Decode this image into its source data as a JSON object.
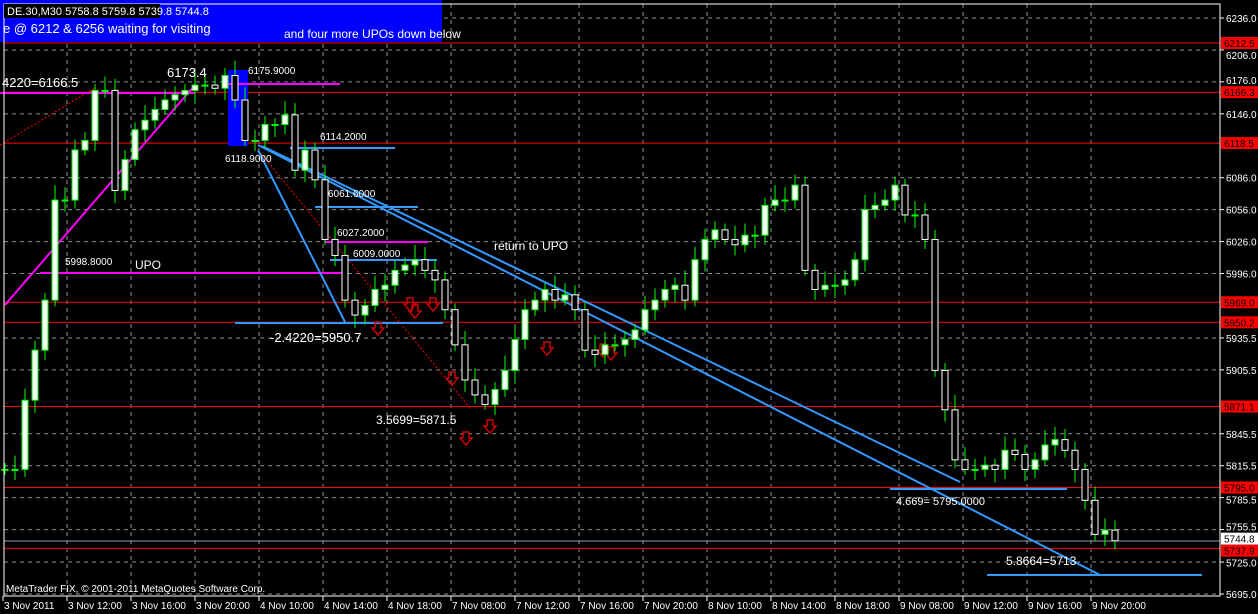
{
  "window": {
    "symbol_info": "DE.30,M30  5758.8 5759.8 5739.8 5744.8",
    "banner_text_1": "e @ 6212 & 6256 waiting for visiting",
    "banner_text_2": "and four more UPOs down below",
    "copyright": "MetaTrader FIX, © 2001-2011 MetaQuotes Software Corp."
  },
  "colors": {
    "background": "#000000",
    "bull_candle": "#ffffff",
    "wick": "#00ff00",
    "level_line": "#ff0000",
    "banner": "#0000ff",
    "trendline": "#3399ff",
    "fib_line": "#ff00ff",
    "bid_line": "#8899aa"
  },
  "chart_data": {
    "type": "candlestick",
    "title": "DE.30,M30",
    "ylim": [
      5695.0,
      6236.0
    ],
    "grid": true,
    "y_ticks": [
      "6236.0",
      "6206.0",
      "6176.0",
      "6146.0",
      "6086.0",
      "6056.0",
      "6026.0",
      "5996.0",
      "5935.5",
      "5905.5",
      "5845.5",
      "5815.5",
      "5785.5",
      "5755.5",
      "5725.0",
      "5695.0"
    ],
    "x_ticks": [
      "3 Nov 2011",
      "3 Nov 12:00",
      "3 Nov 16:00",
      "3 Nov 20:00",
      "4 Nov 10:00",
      "4 Nov 14:00",
      "4 Nov 18:00",
      "7 Nov 08:00",
      "7 Nov 12:00",
      "7 Nov 16:00",
      "7 Nov 20:00",
      "8 Nov 10:00",
      "8 Nov 14:00",
      "8 Nov 18:00",
      "9 Nov 08:00",
      "9 Nov 12:00",
      "9 Nov 16:00",
      "9 Nov 20:00"
    ],
    "closes": [
      5812,
      5812,
      5877,
      5924,
      5971,
      6065,
      6065,
      6112,
      6121,
      6168,
      6168,
      6074,
      6103,
      6131,
      6140,
      6150,
      6159,
      6164,
      6168,
      6173,
      6173,
      6170,
      6182,
      6159,
      6121,
      6121,
      6136,
      6136,
      6145,
      6093,
      6112,
      6084,
      6028,
      6013,
      5971,
      5957,
      5966,
      5981,
      5985,
      5999,
      6004,
      6009,
      5999,
      5990,
      5962,
      5929,
      5896,
      5882,
      5873,
      5887,
      5905,
      5934,
      5962,
      5971,
      5981,
      5971,
      5976,
      5962,
      5924,
      5920,
      5929,
      5929,
      5934,
      5943,
      5962,
      5971,
      5981,
      5985,
      5971,
      6009,
      6028,
      6037,
      6028,
      6023,
      6032,
      6032,
      6060,
      6065,
      6065,
      6079,
      5999,
      5981,
      5985,
      5985,
      5990,
      6009,
      6056,
      6060,
      6065,
      6079,
      6051,
      6051,
      6028,
      5905,
      5868,
      5821,
      5812,
      5812,
      5816,
      5812,
      5830,
      5826,
      5812,
      5821,
      5835,
      5840,
      5830,
      5812,
      5783,
      5751,
      5755,
      5745
    ],
    "price_levels": [
      "6212.5",
      "6166.3",
      "6118.5",
      "5969.0",
      "5950.2",
      "5871.1",
      "5795.0",
      "5737.9"
    ],
    "bid_level": "5744.8",
    "annotations": [
      "4220=6166.5",
      "6173.4",
      "6175.9000",
      "6114.2000",
      "6118.9000",
      "6061.6000",
      "6027.2000",
      "6009.0000",
      "5998.8000",
      "UPO",
      "return to UPO",
      "-2.4220=5950.7",
      "3.5699=5871.5",
      "4.669= 5795.0000",
      "5.8664=5713"
    ]
  }
}
